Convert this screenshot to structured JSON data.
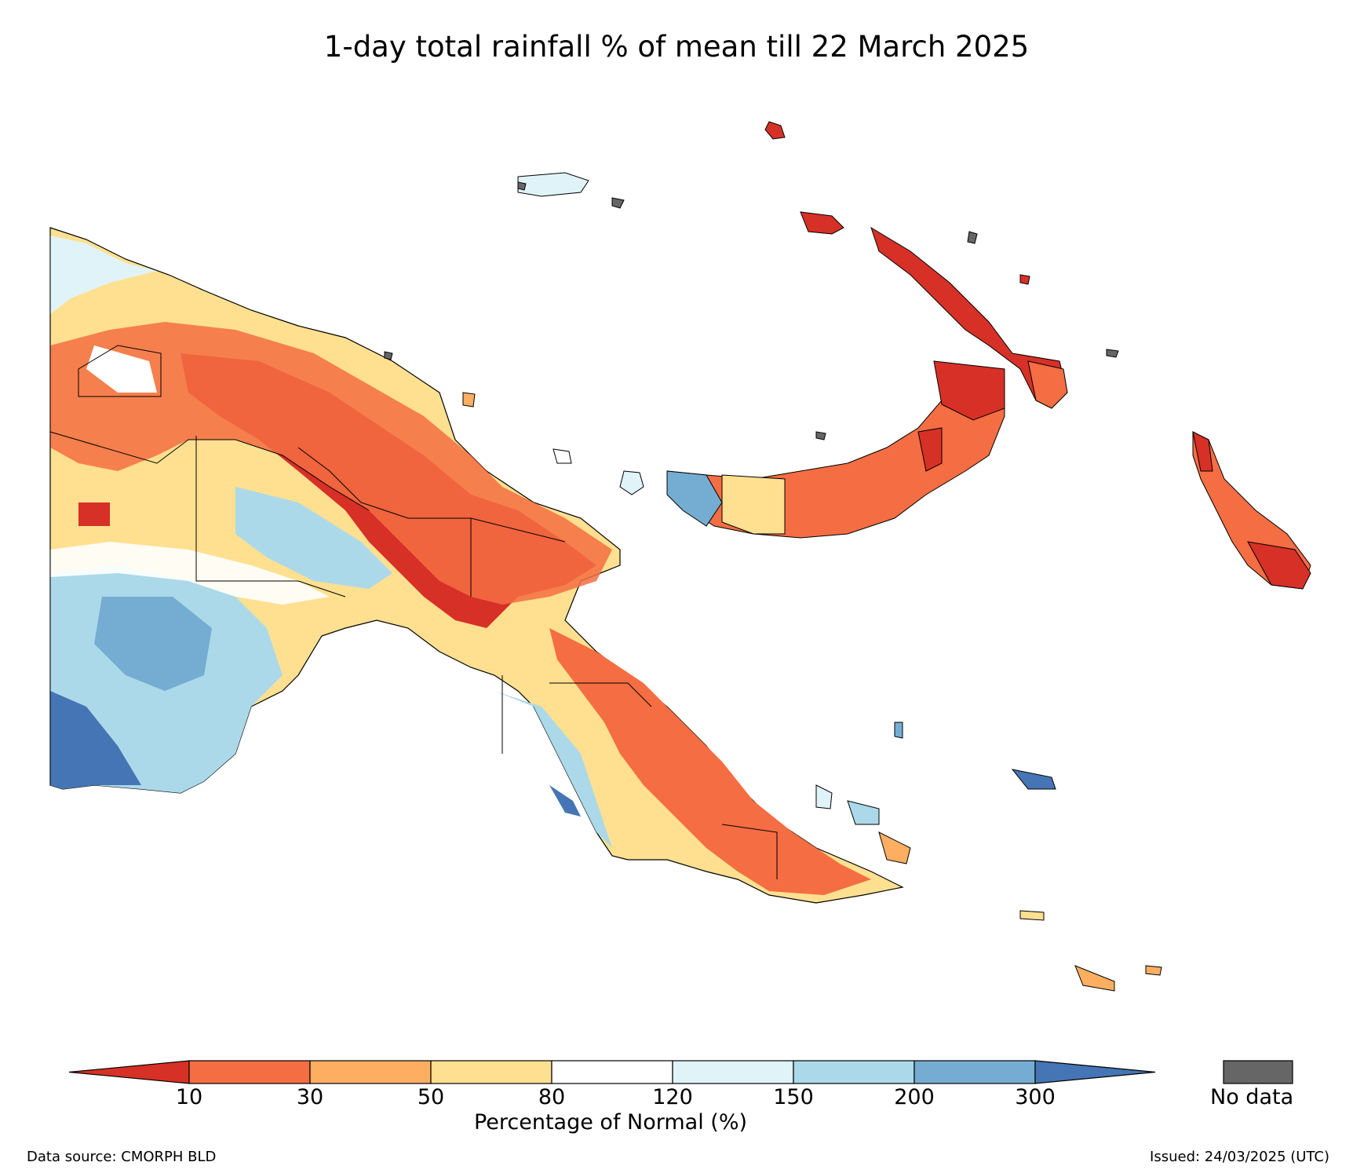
{
  "title": "1-day total rainfall % of mean till 22 March 2025",
  "colorbar": {
    "label": "Percentage of Normal (%)",
    "ticks": [
      "10",
      "30",
      "50",
      "80",
      "120",
      "150",
      "200",
      "300"
    ],
    "colors": [
      "#d73027",
      "#f46d43",
      "#fdae61",
      "#fee090",
      "#ffffff",
      "#e0f3f8",
      "#abd9e9",
      "#74add1",
      "#4575b4"
    ],
    "no_data_label": "No data",
    "no_data_color": "#666666"
  },
  "footer": {
    "source": "Data source: CMORPH BLD",
    "issued": "Issued: 24/03/2025 (UTC)"
  }
}
